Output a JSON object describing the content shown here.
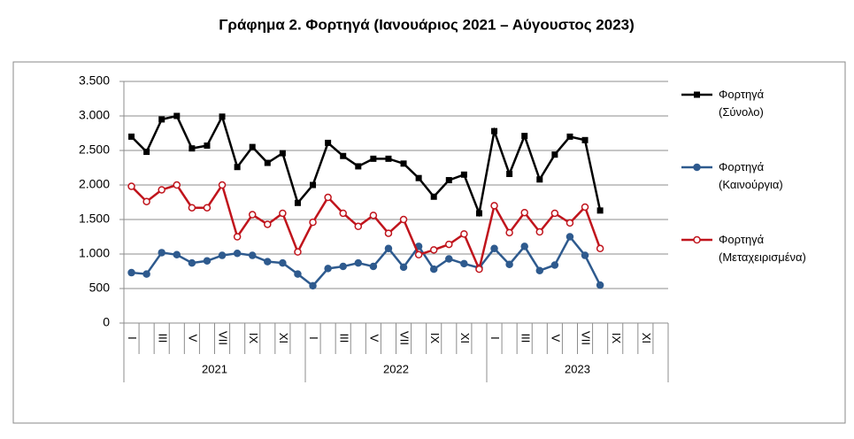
{
  "chart_data": {
    "type": "line",
    "title": "Γράφημα 2. Φορτηγά (Ιανουάριος 2021 – Αύγουστος 2023)",
    "categories": [
      "I",
      null,
      "III",
      null,
      "V",
      null,
      "VII",
      null,
      "IX",
      null,
      "XI",
      null,
      "I",
      null,
      "III",
      null,
      "V",
      null,
      "VII",
      null,
      "IX",
      null,
      "XI",
      null,
      "I",
      null,
      "III",
      null,
      "V",
      null,
      "VII",
      null,
      "IX",
      null,
      "XI",
      null
    ],
    "years": [
      "2021",
      "2022",
      "2023"
    ],
    "series": [
      {
        "name": "Φορτηγά\n(Σύνολο)",
        "color": "#000000",
        "marker": "square",
        "values": [
          2700,
          2480,
          2950,
          3000,
          2530,
          2570,
          2990,
          2260,
          2550,
          2320,
          2460,
          1740,
          2000,
          2610,
          2420,
          2270,
          2380,
          2380,
          2310,
          2100,
          1830,
          2070,
          2150,
          1590,
          2780,
          2160,
          2710,
          2080,
          2440,
          2700,
          2650,
          1630,
          null,
          null,
          null,
          null
        ]
      },
      {
        "name": "Φορτηγά\n(Καινούργια)",
        "color": "#2e5a8e",
        "marker": "circle",
        "values": [
          730,
          710,
          1020,
          990,
          870,
          900,
          980,
          1010,
          980,
          890,
          870,
          710,
          540,
          790,
          820,
          870,
          820,
          1080,
          810,
          1110,
          780,
          930,
          860,
          800,
          1080,
          850,
          1110,
          760,
          840,
          1250,
          980,
          550,
          null,
          null,
          null,
          null
        ]
      },
      {
        "name": "Φορτηγά\n(Μεταχειρισμένα)",
        "color": "#c0141c",
        "marker": "open-circle",
        "values": [
          1980,
          1760,
          1930,
          2000,
          1670,
          1670,
          2000,
          1250,
          1570,
          1430,
          1590,
          1030,
          1460,
          1820,
          1590,
          1400,
          1560,
          1300,
          1500,
          990,
          1060,
          1140,
          1290,
          780,
          1700,
          1310,
          1600,
          1320,
          1590,
          1450,
          1680,
          1080,
          null,
          null,
          null,
          null
        ]
      }
    ],
    "ylim": [
      0,
      3500
    ],
    "yticks": [
      0,
      {
        "value": 500,
        "label": "500"
      },
      {
        "value": 1000,
        "label": "1.000"
      },
      {
        "value": 1500,
        "label": "1.500"
      },
      {
        "value": 2000,
        "label": "2.000"
      },
      {
        "value": 2500,
        "label": "2.500"
      },
      {
        "value": 3000,
        "label": "3.000"
      },
      {
        "value": 3500,
        "label": "3.500"
      }
    ],
    "grid": true,
    "legend": "right"
  }
}
